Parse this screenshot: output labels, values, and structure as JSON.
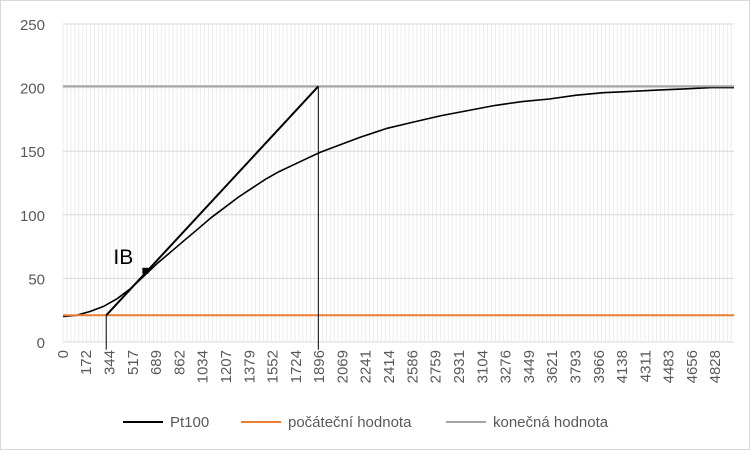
{
  "chart_data": {
    "type": "line",
    "title": "",
    "xlabel": "",
    "ylabel": "",
    "ylim": [
      0,
      250
    ],
    "yticks": [
      0,
      50,
      100,
      150,
      200,
      250
    ],
    "xlim": [
      0,
      4967
    ],
    "xticks": [
      "0",
      "172",
      "344",
      "517",
      "689",
      "862",
      "1034",
      "1207",
      "1379",
      "1552",
      "1724",
      "1896",
      "2069",
      "2241",
      "2414",
      "2586",
      "2759",
      "2931",
      "3104",
      "3276",
      "3449",
      "3621",
      "3793",
      "3966",
      "4138",
      "4311",
      "4483",
      "4656",
      "4828"
    ],
    "grid": "vertical and horizontal",
    "legend_position": "bottom",
    "series": [
      {
        "name": "Pt100",
        "color": "#000000",
        "x": [
          0,
          100,
          200,
          300,
          400,
          500,
          600,
          700,
          800,
          900,
          1000,
          1100,
          1200,
          1300,
          1400,
          1500,
          1600,
          1700,
          1800,
          1900,
          2000,
          2200,
          2400,
          2600,
          2800,
          3000,
          3200,
          3400,
          3600,
          3800,
          4000,
          4200,
          4400,
          4600,
          4800,
          4967
        ],
        "values": [
          20,
          21,
          24,
          28,
          34,
          42,
          52,
          62,
          71,
          80,
          89,
          98,
          106,
          114,
          121,
          128,
          134,
          139,
          144,
          149,
          153,
          161,
          168,
          173,
          178,
          182,
          186,
          189,
          191,
          194,
          196,
          197,
          198,
          199,
          200,
          200
        ]
      },
      {
        "name": "počáteční hodnota",
        "color": "#ed7d31",
        "x": [
          0,
          4967
        ],
        "values": [
          21,
          21
        ]
      },
      {
        "name": "konečná hodnota",
        "color": "#a5a5a5",
        "x": [
          0,
          4967
        ],
        "values": [
          201,
          201
        ]
      }
    ],
    "annotations": [
      {
        "text": "IB",
        "x": 610,
        "y": 58
      }
    ],
    "tangent": {
      "color": "#000000",
      "x": [
        320,
        1890
      ],
      "values": [
        21,
        201
      ]
    },
    "inflection_marker": {
      "x": 610,
      "y": 56
    },
    "verticals": [
      {
        "x": 320,
        "from": -6,
        "to": 21
      },
      {
        "x": 1890,
        "from": -6,
        "to": 201
      }
    ]
  }
}
